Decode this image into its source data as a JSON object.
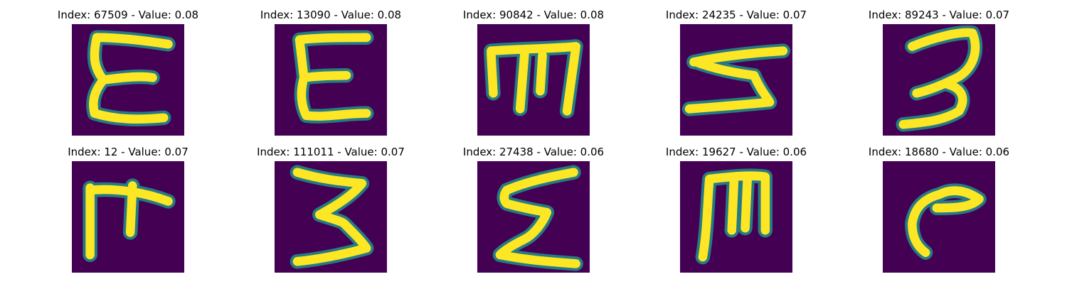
{
  "colors": {
    "background": "#440154",
    "stroke": "#fde725",
    "edge": "#21918c"
  },
  "panels": [
    {
      "title": "Index: 67509 - Value: 0.08",
      "glyph": "E-letter"
    },
    {
      "title": "Index: 13090 - Value: 0.08",
      "glyph": "E-letter"
    },
    {
      "title": "Index: 90842 - Value: 0.08",
      "glyph": "m-letter"
    },
    {
      "title": "Index: 24235 - Value: 0.07",
      "glyph": "3-like"
    },
    {
      "title": "Index: 89243 - Value: 0.07",
      "glyph": "3-like"
    },
    {
      "title": "Index: 12 - Value: 0.07",
      "glyph": "F-like"
    },
    {
      "title": "Index: 111011 - Value: 0.07",
      "glyph": "3-like"
    },
    {
      "title": "Index: 27438 - Value: 0.06",
      "glyph": "sigma-like"
    },
    {
      "title": "Index: 19627 - Value: 0.06",
      "glyph": "m-letter"
    },
    {
      "title": "Index: 18680 - Value: 0.06",
      "glyph": "r-like"
    }
  ]
}
